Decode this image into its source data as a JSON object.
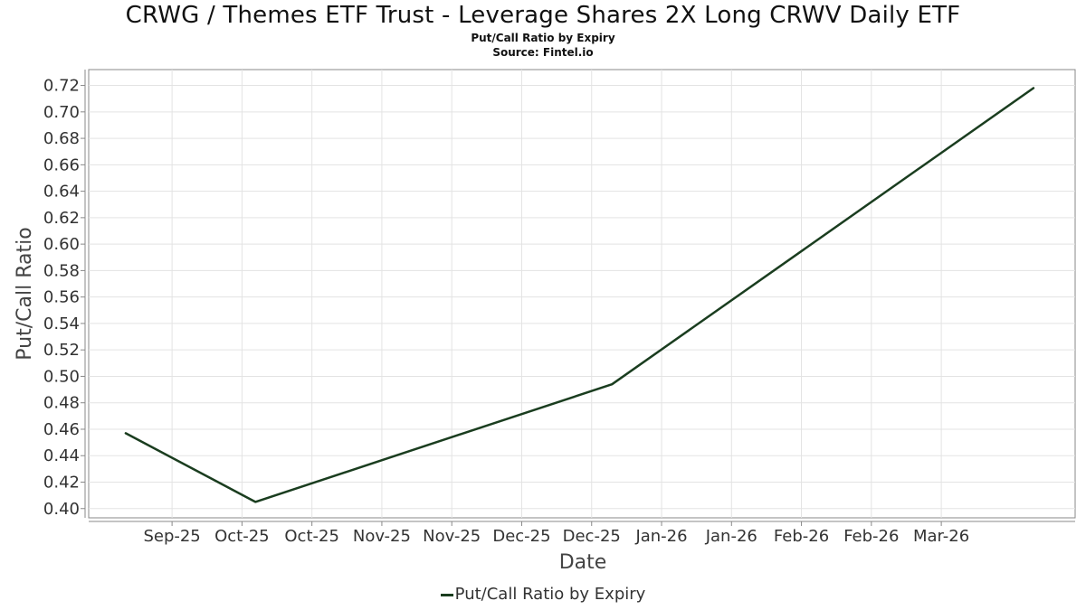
{
  "chart_data": {
    "type": "line",
    "title": "CRWG / Themes ETF Trust - Leverage Shares 2X Long CRWV Daily ETF",
    "subtitle": "Put/Call Ratio by Expiry",
    "source": "Source: Fintel.io",
    "xlabel": "Date",
    "ylabel": "Put/Call Ratio",
    "x_tick_labels": [
      "Sep-25",
      "Oct-25",
      "Oct-25",
      "Nov-25",
      "Nov-25",
      "Dec-25",
      "Dec-25",
      "Jan-26",
      "Jan-26",
      "Feb-26",
      "Feb-26",
      "Mar-26"
    ],
    "y_tick_labels": [
      "0.40",
      "0.42",
      "0.44",
      "0.46",
      "0.48",
      "0.50",
      "0.52",
      "0.54",
      "0.56",
      "0.58",
      "0.60",
      "0.62",
      "0.64",
      "0.66",
      "0.68",
      "0.70",
      "0.72"
    ],
    "ylim": [
      0.393,
      0.732
    ],
    "xlim": [
      "2025-08-28",
      "2026-03-29"
    ],
    "grid": true,
    "legend_position": "bottom-center",
    "series": [
      {
        "name": "Put/Call Ratio by Expiry",
        "color": "#1a3d1f",
        "points": [
          {
            "x": "2025-09-05",
            "y": 0.457
          },
          {
            "x": "2025-10-03",
            "y": 0.405
          },
          {
            "x": "2025-12-19",
            "y": 0.494
          },
          {
            "x": "2026-03-20",
            "y": 0.718
          }
        ]
      }
    ]
  }
}
